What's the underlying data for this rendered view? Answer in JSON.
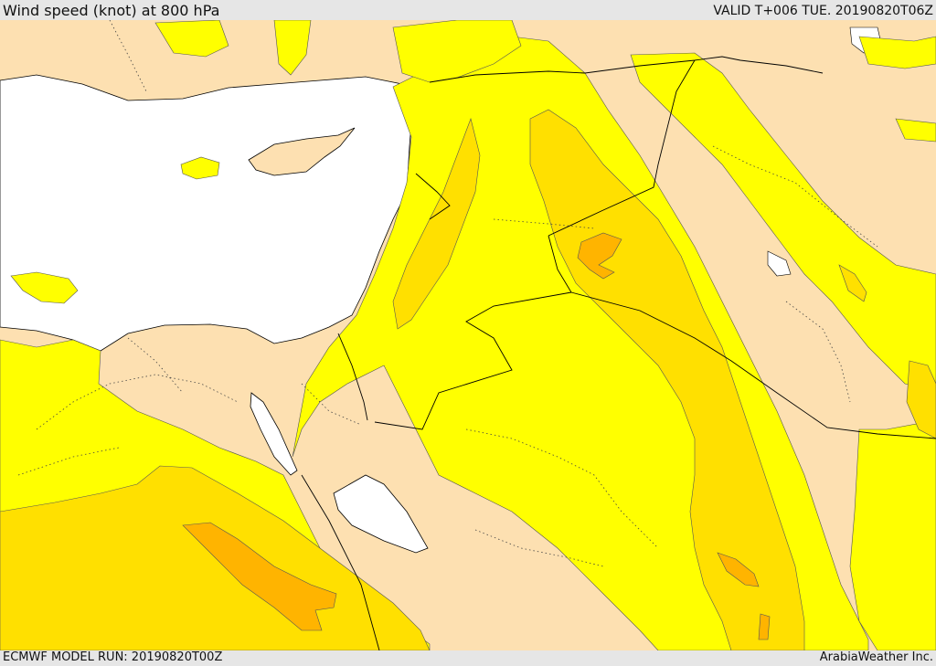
{
  "header": {
    "title": "Wind speed (knot) at 800 hPa",
    "valid": "VALID T+006 TUE. 20190820T06Z"
  },
  "footer": {
    "model_run": "ECMWF MODEL RUN: 20190820T00Z",
    "credit": "ArabiaWeather Inc."
  },
  "map": {
    "colors": {
      "land_below": "#fde0b1",
      "sea": "#ffffff",
      "band_1": "#ffff00",
      "band_2": "#ffe000",
      "band_3": "#ffb400",
      "boundary": "#000000"
    }
  }
}
